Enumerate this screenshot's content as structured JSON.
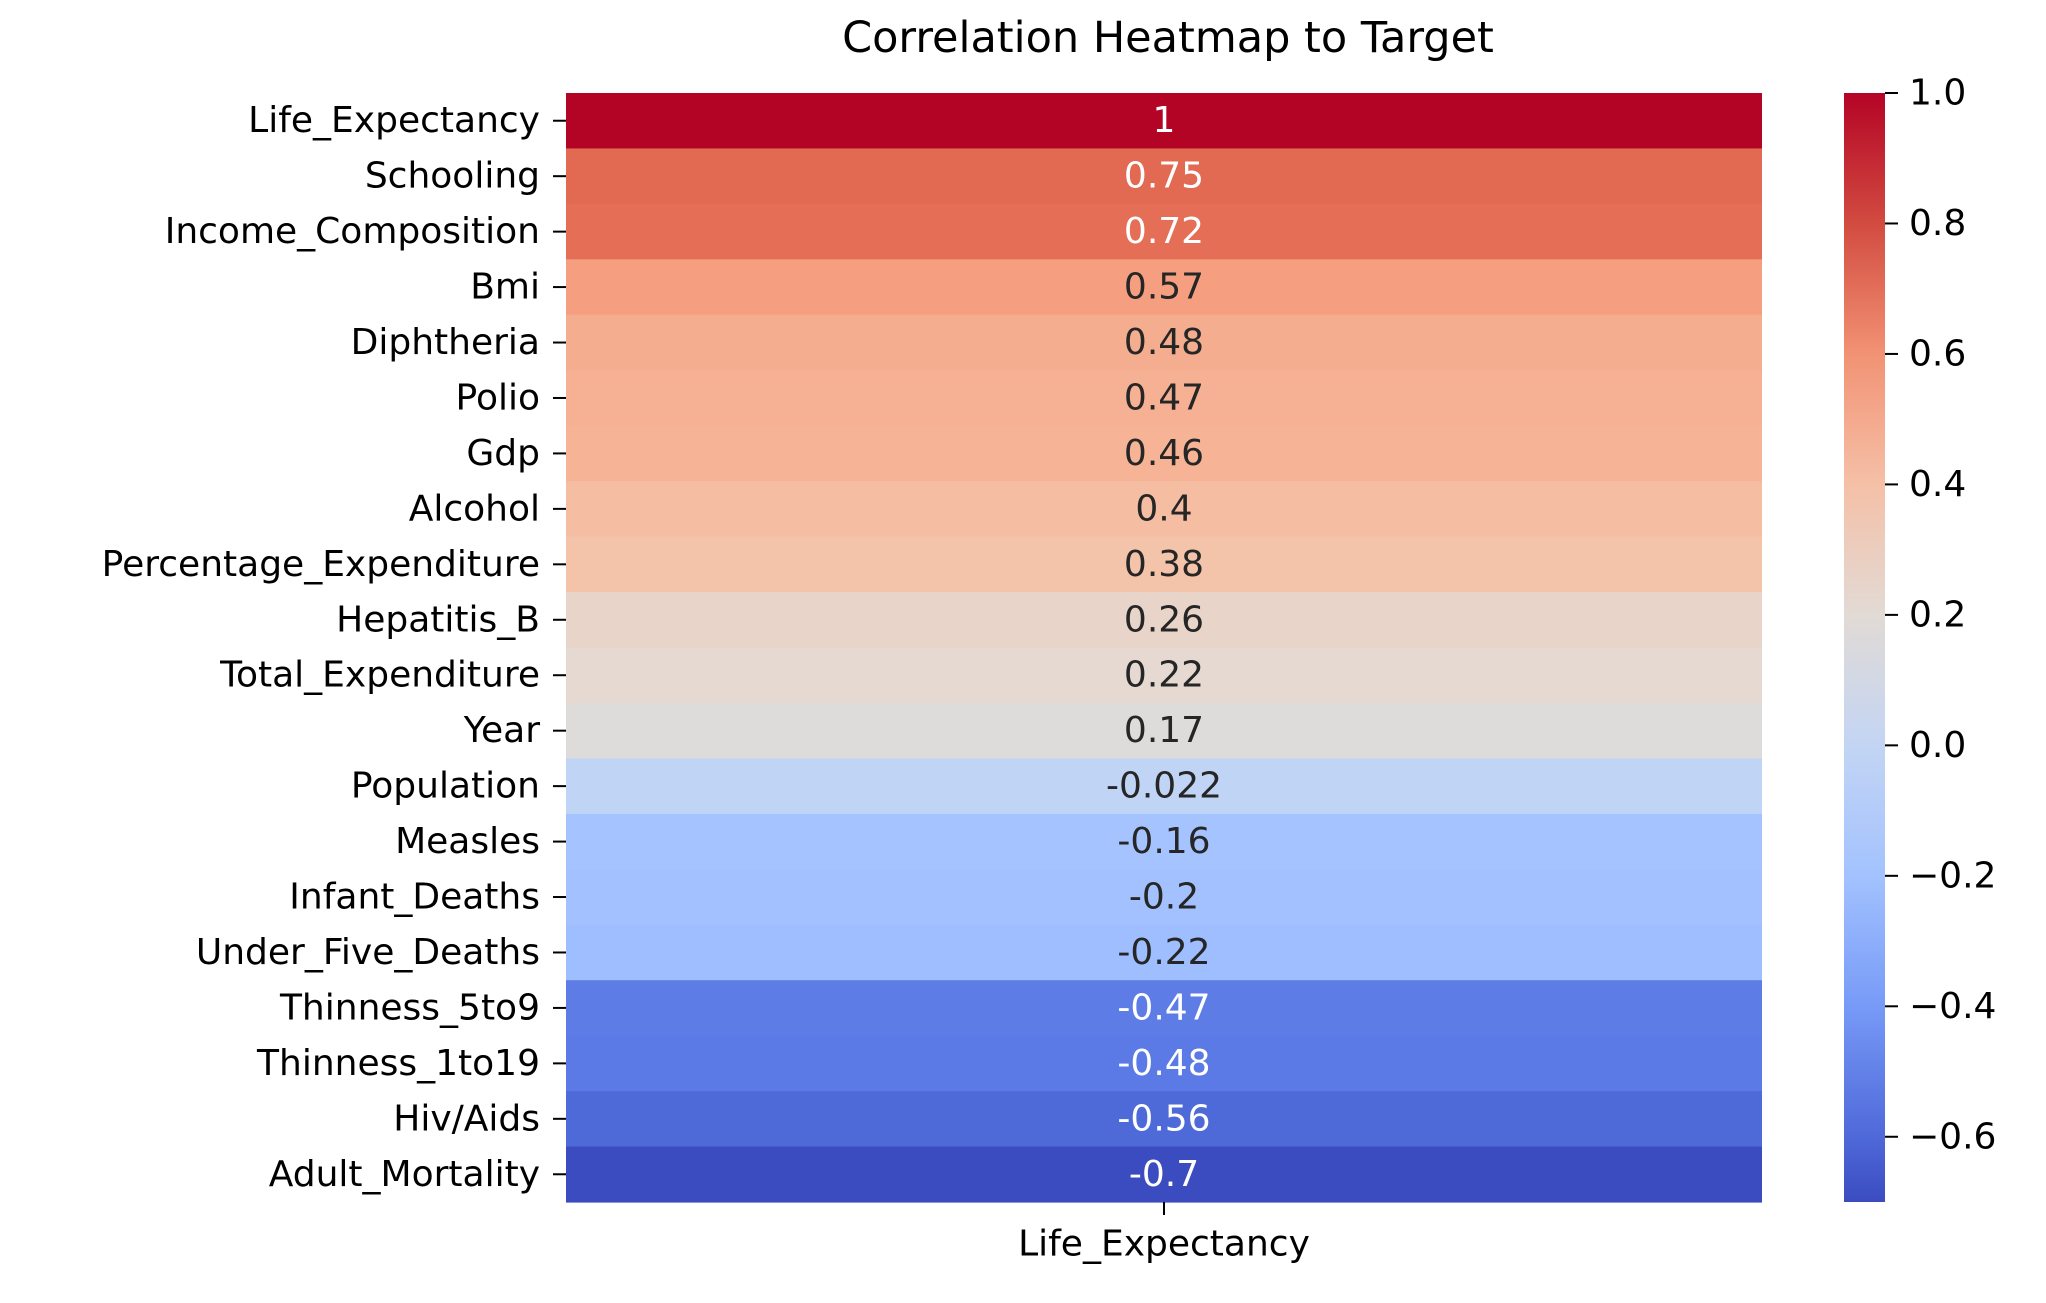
{
  "chart_data": {
    "type": "heatmap",
    "title": "Correlation Heatmap to Target",
    "xlabel": "",
    "ylabel": "",
    "columns": [
      "Life_Expectancy"
    ],
    "rows": [
      {
        "label": "Life_Expectancy",
        "value": 1.0,
        "text": "1",
        "color": "#b40426",
        "text_color": "#ffffff"
      },
      {
        "label": "Schooling",
        "value": 0.75,
        "text": "0.75",
        "color": "#e26952",
        "text_color": "#ffffff"
      },
      {
        "label": "Income_Composition",
        "value": 0.72,
        "text": "0.72",
        "color": "#e46e56",
        "text_color": "#ffffff"
      },
      {
        "label": "Bmi",
        "value": 0.57,
        "text": "0.57",
        "color": "#f59f80",
        "text_color": "#262626"
      },
      {
        "label": "Diphtheria",
        "value": 0.48,
        "text": "0.48",
        "color": "#f5ad8f",
        "text_color": "#262626"
      },
      {
        "label": "Polio",
        "value": 0.47,
        "text": "0.47",
        "color": "#f6b093",
        "text_color": "#262626"
      },
      {
        "label": "Gdp",
        "value": 0.46,
        "text": "0.46",
        "color": "#f6b395",
        "text_color": "#262626"
      },
      {
        "label": "Alcohol",
        "value": 0.4,
        "text": "0.4",
        "color": "#f5bea3",
        "text_color": "#262626"
      },
      {
        "label": "Percentage_Expenditure",
        "value": 0.38,
        "text": "0.38",
        "color": "#f3c4aa",
        "text_color": "#262626"
      },
      {
        "label": "Hepatitis_B",
        "value": 0.26,
        "text": "0.26",
        "color": "#e9d4c9",
        "text_color": "#262626"
      },
      {
        "label": "Total_Expenditure",
        "value": 0.22,
        "text": "0.22",
        "color": "#e6d9d1",
        "text_color": "#262626"
      },
      {
        "label": "Year",
        "value": 0.17,
        "text": "0.17",
        "color": "#dedcdb",
        "text_color": "#262626"
      },
      {
        "label": "Population",
        "value": -0.022,
        "text": "-0.022",
        "color": "#c0d4f5",
        "text_color": "#262626"
      },
      {
        "label": "Measles",
        "value": -0.16,
        "text": "-0.16",
        "color": "#a5c3fe",
        "text_color": "#262626"
      },
      {
        "label": "Infant_Deaths",
        "value": -0.2,
        "text": "-0.2",
        "color": "#a3c1fe",
        "text_color": "#262626"
      },
      {
        "label": "Under_Five_Deaths",
        "value": -0.22,
        "text": "-0.22",
        "color": "#9ebeff",
        "text_color": "#262626"
      },
      {
        "label": "Thinness_5to9",
        "value": -0.47,
        "text": "-0.47",
        "color": "#5d7ce6",
        "text_color": "#ffffff"
      },
      {
        "label": "Thinness_1to19",
        "value": -0.48,
        "text": "-0.48",
        "color": "#5b7ae5",
        "text_color": "#ffffff"
      },
      {
        "label": "Hiv/Aids",
        "value": -0.56,
        "text": "-0.56",
        "color": "#4e6ad8",
        "text_color": "#ffffff"
      },
      {
        "label": "Adult_Mortality",
        "value": -0.7,
        "text": "-0.7",
        "color": "#3b4cc0",
        "text_color": "#ffffff"
      }
    ],
    "colorbar": {
      "range": [
        -0.7,
        1.0
      ],
      "ticks": [
        {
          "value": 1.0,
          "label": "1.0"
        },
        {
          "value": 0.8,
          "label": "0.8"
        },
        {
          "value": 0.6,
          "label": "0.6"
        },
        {
          "value": 0.4,
          "label": "0.4"
        },
        {
          "value": 0.2,
          "label": "0.2"
        },
        {
          "value": 0.0,
          "label": "0.0"
        },
        {
          "value": -0.2,
          "label": "−0.2"
        },
        {
          "value": -0.4,
          "label": "−0.4"
        },
        {
          "value": -0.6,
          "label": "−0.6"
        }
      ],
      "gradient": [
        {
          "value": 1.0,
          "color": "#b40426"
        },
        {
          "value": 0.8,
          "color": "#d24b40"
        },
        {
          "value": 0.6,
          "color": "#f29274"
        },
        {
          "value": 0.4,
          "color": "#f5c0a7"
        },
        {
          "value": 0.2,
          "color": "#e2dad5"
        },
        {
          "value": 0.0,
          "color": "#c3d5f4"
        },
        {
          "value": -0.2,
          "color": "#a3c2fe"
        },
        {
          "value": -0.4,
          "color": "#779af7"
        },
        {
          "value": -0.6,
          "color": "#4f69d9"
        },
        {
          "value": -0.7,
          "color": "#3b4cc0"
        }
      ]
    }
  }
}
